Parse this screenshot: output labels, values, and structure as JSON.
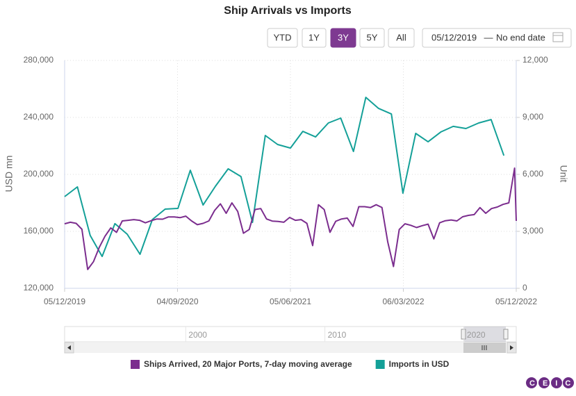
{
  "chart_data": {
    "type": "line",
    "title": "Ship Arrivals vs Imports",
    "range_buttons": [
      "YTD",
      "1Y",
      "3Y",
      "5Y",
      "All"
    ],
    "active_range": "3Y",
    "date_from": "05/12/2019",
    "date_separator": "—",
    "date_to": "No end date",
    "ylabel": "USD mn",
    "y2label": "Unit",
    "xlim": [
      "2019-12-05",
      "2022-12-05"
    ],
    "xticks": [
      {
        "value": "2019-12-05",
        "label": "05/12/2019"
      },
      {
        "value": "2020-09-04",
        "label": "04/09/2020"
      },
      {
        "value": "2021-06-05",
        "label": "05/06/2021"
      },
      {
        "value": "2022-03-06",
        "label": "06/03/2022"
      },
      {
        "value": "2022-12-05",
        "label": "05/12/2022"
      }
    ],
    "ylim": [
      120000,
      280000
    ],
    "yticks": [
      {
        "value": 120000,
        "label": "120,000"
      },
      {
        "value": 160000,
        "label": "160,000"
      },
      {
        "value": 200000,
        "label": "200,000"
      },
      {
        "value": 240000,
        "label": "240,000"
      },
      {
        "value": 280000,
        "label": "280,000"
      }
    ],
    "y2lim": [
      0,
      12000
    ],
    "y2ticks": [
      0,
      {
        "value": 3000,
        "label": "3,000"
      },
      {
        "value": 6000,
        "label": "6,000"
      },
      {
        "value": 9000,
        "label": "9,000"
      },
      {
        "value": 12000,
        "label": "12,000"
      }
    ],
    "grid": true,
    "series": [
      {
        "name": "Ships Arrived, 20 Major Ports, 7-day moving average",
        "color": "#7b2d8e",
        "axis": "y2",
        "x": [
          "2019-12-05",
          "2019-12-19",
          "2020-01-02",
          "2020-01-16",
          "2020-01-30",
          "2020-02-13",
          "2020-02-27",
          "2020-03-12",
          "2020-03-26",
          "2020-04-09",
          "2020-04-23",
          "2020-05-07",
          "2020-05-21",
          "2020-06-04",
          "2020-06-18",
          "2020-07-02",
          "2020-07-16",
          "2020-07-30",
          "2020-08-13",
          "2020-08-27",
          "2020-09-10",
          "2020-09-24",
          "2020-10-08",
          "2020-10-22",
          "2020-11-05",
          "2020-11-19",
          "2020-12-03",
          "2020-12-17",
          "2020-12-31",
          "2021-01-14",
          "2021-01-28",
          "2021-02-11",
          "2021-02-25",
          "2021-03-11",
          "2021-03-25",
          "2021-04-08",
          "2021-04-22",
          "2021-05-06",
          "2021-05-20",
          "2021-06-03",
          "2021-06-17",
          "2021-07-01",
          "2021-07-15",
          "2021-07-29",
          "2021-08-12",
          "2021-08-26",
          "2021-09-09",
          "2021-09-23",
          "2021-10-07",
          "2021-10-21",
          "2021-11-04",
          "2021-11-18",
          "2021-12-02",
          "2021-12-16",
          "2021-12-30",
          "2022-01-13",
          "2022-01-27",
          "2022-02-10",
          "2022-02-24",
          "2022-03-10",
          "2022-03-24",
          "2022-04-07",
          "2022-04-21",
          "2022-05-05",
          "2022-05-19",
          "2022-06-02",
          "2022-06-16",
          "2022-06-30",
          "2022-07-14",
          "2022-07-28",
          "2022-08-11",
          "2022-08-25",
          "2022-09-08",
          "2022-09-22",
          "2022-10-06",
          "2022-10-20",
          "2022-11-03",
          "2022-11-17",
          "2022-12-01",
          "2022-12-05"
        ],
        "values": [
          3400,
          3480,
          3420,
          3110,
          990,
          1400,
          2150,
          2740,
          3180,
          2950,
          3550,
          3580,
          3620,
          3580,
          3450,
          3560,
          3650,
          3640,
          3760,
          3760,
          3720,
          3800,
          3550,
          3350,
          3420,
          3550,
          4100,
          4450,
          3950,
          4500,
          4050,
          2900,
          3100,
          4150,
          4200,
          3650,
          3540,
          3520,
          3480,
          3730,
          3580,
          3620,
          3420,
          2250,
          4400,
          4150,
          2950,
          3530,
          3650,
          3700,
          3260,
          4300,
          4300,
          4250,
          4400,
          4260,
          2450,
          1150,
          3100,
          3400,
          3320,
          3200,
          3300,
          3380,
          2600,
          3450,
          3560,
          3600,
          3550,
          3770,
          3840,
          3880,
          4250,
          3950,
          4200,
          4280,
          4420,
          4500,
          6330,
          3550
        ]
      },
      {
        "name": "Imports in USD",
        "color": "#14a098",
        "x": [
          "2019-12-05",
          "2020-01-05",
          "2020-02-05",
          "2020-03-05",
          "2020-04-05",
          "2020-05-05",
          "2020-06-05",
          "2020-07-05",
          "2020-08-05",
          "2020-09-05",
          "2020-10-05",
          "2020-11-05",
          "2020-12-05",
          "2021-01-05",
          "2021-02-05",
          "2021-03-05",
          "2021-04-05",
          "2021-05-05",
          "2021-06-05",
          "2021-07-05",
          "2021-08-05",
          "2021-09-05",
          "2021-10-05",
          "2021-11-05",
          "2021-12-05",
          "2022-01-05",
          "2022-02-05",
          "2022-03-05",
          "2022-04-05",
          "2022-05-05",
          "2022-06-05",
          "2022-07-05",
          "2022-08-05",
          "2022-09-05",
          "2022-10-05",
          "2022-11-05"
        ],
        "values": [
          184400,
          191200,
          157100,
          142400,
          165400,
          158000,
          143900,
          168300,
          175600,
          176100,
          202900,
          178500,
          191700,
          203900,
          198500,
          166300,
          227300,
          221000,
          218500,
          230200,
          226300,
          236100,
          239500,
          216100,
          254100,
          246300,
          242400,
          186800,
          228800,
          222900,
          229800,
          233700,
          232200,
          236100,
          238500,
          213200
        ]
      }
    ],
    "navigator": {
      "xlim": [
        1990.45,
        2022.9
      ],
      "xticks": [
        2000,
        2010,
        2020
      ]
    },
    "logo": "CEIC"
  }
}
